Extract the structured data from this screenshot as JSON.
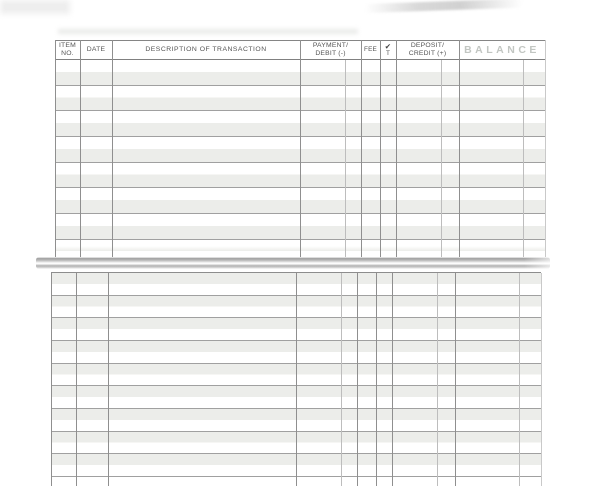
{
  "document": {
    "kind": "blank checkbook transaction register, scanned paper page",
    "register": {
      "header": {
        "item_no_line1": "ITEM",
        "item_no_line2": "NO.",
        "date": "DATE",
        "description": "DESCRIPTION OF TRANSACTION",
        "payment_line1": "PAYMENT/",
        "payment_line2": "DEBIT (-)",
        "fee": "FEE",
        "check_icon": "✔",
        "check_line2": "T",
        "deposit_line1": "DEPOSIT/",
        "deposit_line2": "CREDIT (+)",
        "balance": "BALANCE"
      },
      "sections": {
        "top_rows": 8,
        "bottom_rows": 9
      },
      "all_cells_blank": true,
      "colors": {
        "paper": "#ffffff",
        "row_shade": "#ecedea",
        "row_line": "#a0a0a0",
        "column_line": "#8f8f8f",
        "cents_divider_line": "#bdbdbd",
        "header_text": "#555555",
        "balance_header_text": "#c2c6c2",
        "fold_bar_gray": "#a5a5a5"
      }
    }
  }
}
